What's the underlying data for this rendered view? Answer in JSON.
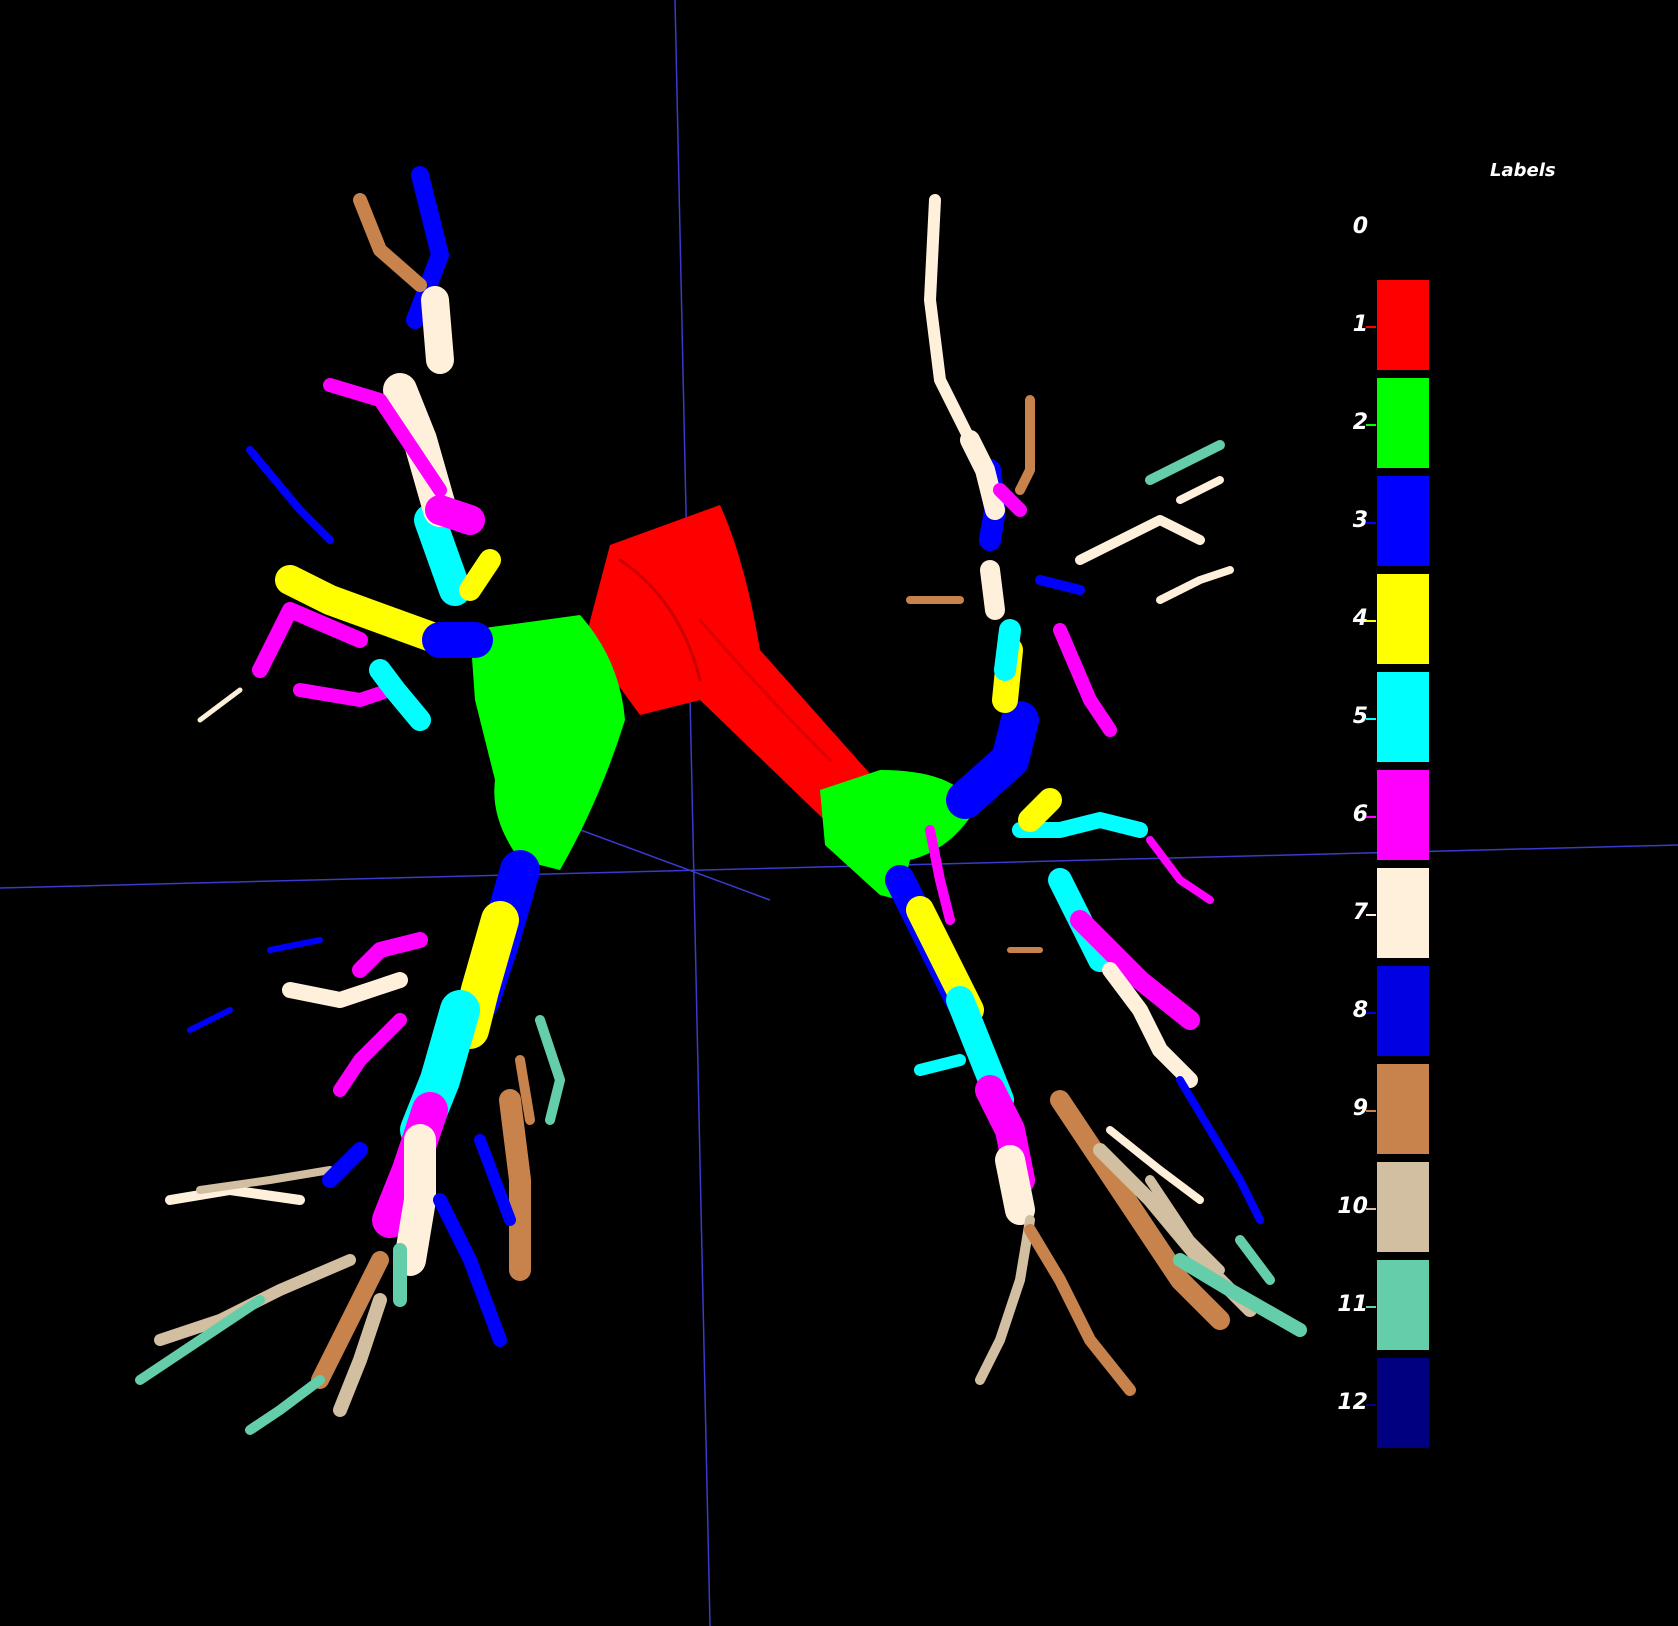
{
  "legend": {
    "title": "Labels",
    "labels": [
      "0",
      "1",
      "2",
      "3",
      "4",
      "5",
      "6",
      "7",
      "8",
      "9",
      "10",
      "11",
      "12"
    ],
    "colors": [
      "#000000",
      "#ff0000",
      "#00ff00",
      "#0000ff",
      "#ffff00",
      "#00ffff",
      "#ff00ff",
      "#fff0dc",
      "#0000e0",
      "#c8824b",
      "#d2bea0",
      "#64cdaa",
      "#000080"
    ]
  }
}
